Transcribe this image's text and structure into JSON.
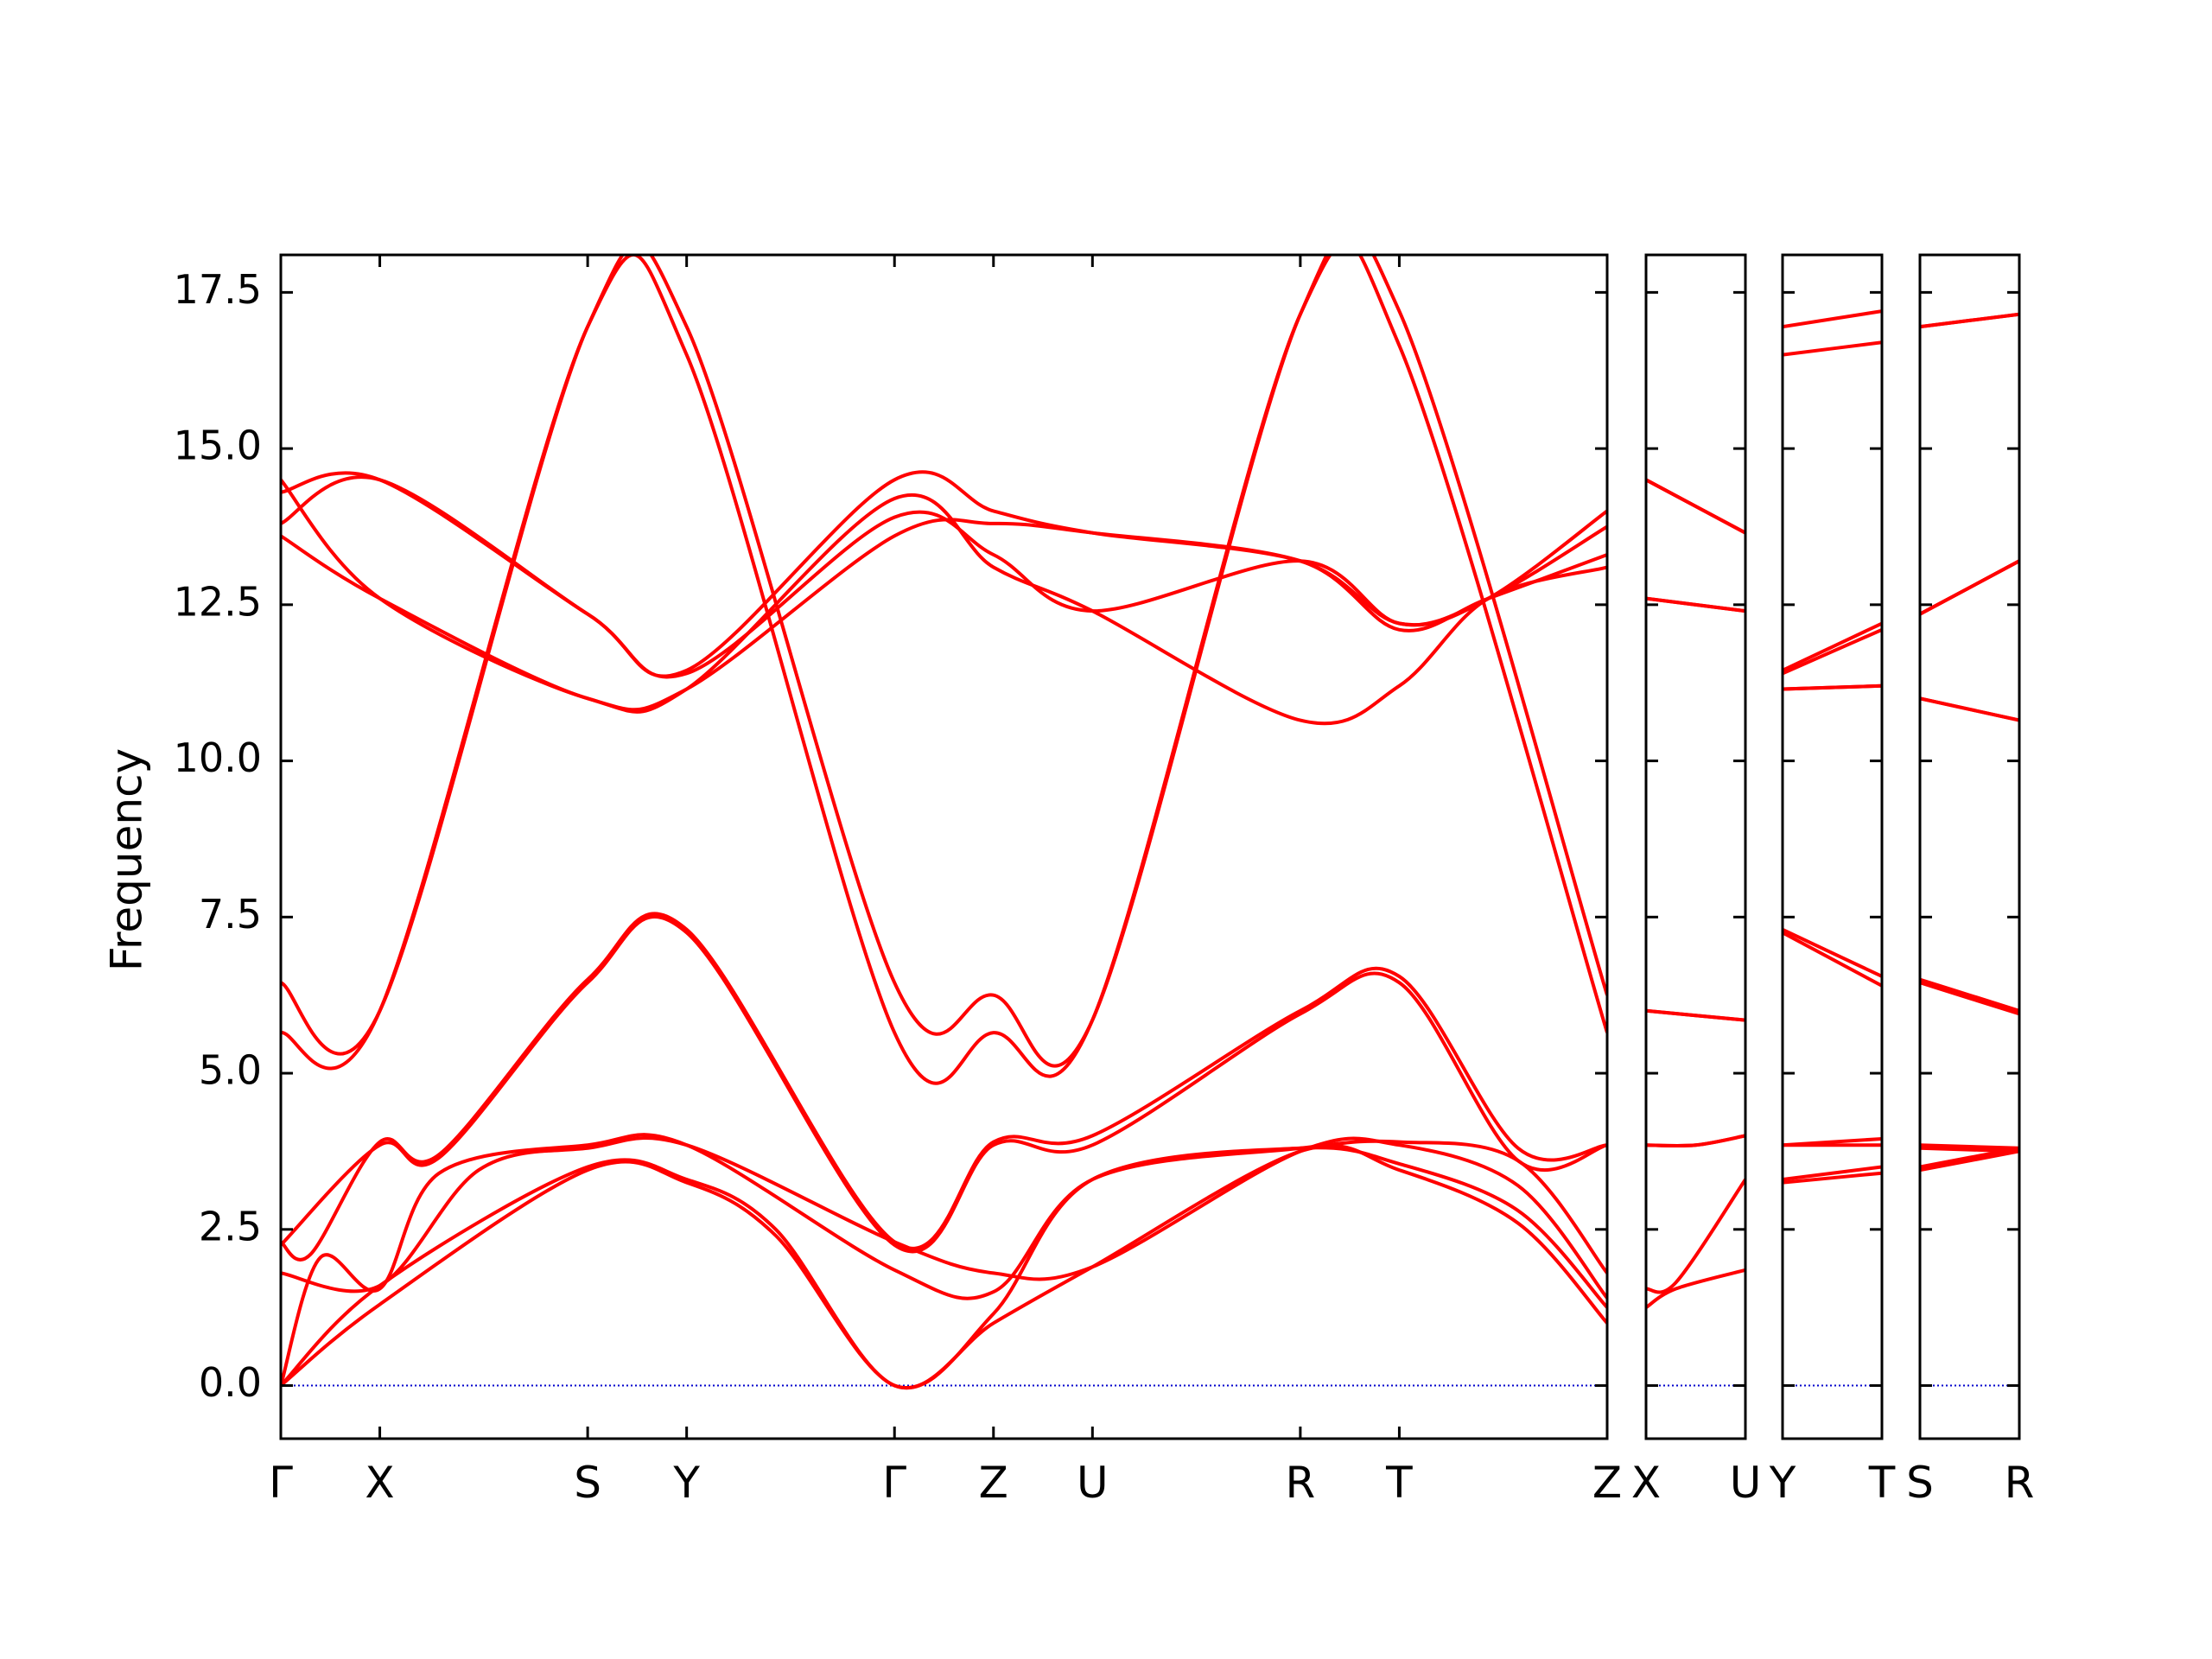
{
  "chart_data": {
    "type": "line",
    "title": "",
    "ylabel": "Frequency",
    "ylim": [
      -0.85,
      18.1
    ],
    "yticks": [
      "0.0",
      "2.5",
      "5.0",
      "7.5",
      "10.0",
      "12.5",
      "15.0",
      "17.5"
    ],
    "ytick_values": [
      0,
      2.5,
      5,
      7.5,
      10,
      12.5,
      15,
      17.5
    ],
    "grid": false,
    "legend": "none",
    "colors": {
      "band": "#ff0000",
      "zero_line": "#0000cc",
      "frame": "#000000"
    },
    "panels": [
      {
        "ticks": [
          {
            "label": "Γ",
            "x": 0
          },
          {
            "label": "X",
            "x": 1
          },
          {
            "label": "S",
            "x": 3.1
          },
          {
            "label": "Y",
            "x": 4.1
          },
          {
            "label": "Γ",
            "x": 6.2
          },
          {
            "label": "Z",
            "x": 7.2
          },
          {
            "label": "U",
            "x": 8.2
          },
          {
            "label": "R",
            "x": 10.3
          },
          {
            "label": "T",
            "x": 11.3
          },
          {
            "label": "Z",
            "x": 13.4
          }
        ],
        "bands": [
          [
            0,
            0,
            1,
            1.3,
            3.1,
            3.45,
            4.1,
            3.25,
            5,
            2.4,
            6.2,
            0,
            7.2,
            1.0,
            8.2,
            1.9,
            10.3,
            3.75,
            11.3,
            3.45,
            12.5,
            2.6,
            13.4,
            1.0
          ],
          [
            0,
            0,
            1,
            1.6,
            3.1,
            3.5,
            4.1,
            3.3,
            5,
            2.5,
            6.2,
            0,
            7.2,
            1.15,
            8.2,
            3.3,
            10.3,
            3.8,
            11.3,
            3.55,
            12.5,
            2.8,
            13.4,
            1.25
          ],
          [
            0,
            0,
            0.4,
            2.05,
            1,
            1.55,
            1.6,
            3.4,
            3.1,
            3.85,
            4.1,
            3.85,
            6.2,
            1.85,
            7.2,
            1.5,
            8.2,
            3.3,
            10.3,
            3.8,
            11.3,
            3.9,
            12.5,
            3.6,
            13.4,
            1.8
          ],
          [
            0,
            1.8,
            1,
            1.6,
            2,
            3.45,
            3.1,
            3.8,
            4.1,
            3.85,
            6.2,
            2.3,
            7.2,
            1.8,
            8.2,
            1.9,
            10.3,
            3.75,
            11.3,
            3.85,
            12.5,
            3.2,
            13.4,
            1.4
          ],
          [
            0,
            2.25,
            1,
            3.85,
            1.6,
            3.65,
            3.1,
            6.45,
            4.1,
            7.25,
            6.2,
            2.25,
            7.2,
            3.85,
            8.2,
            3.85,
            10.3,
            5.95,
            11.3,
            6.45,
            12.5,
            3.6,
            13.4,
            3.85
          ],
          [
            0,
            2.3,
            0.3,
            2.1,
            1,
            3.9,
            1.6,
            3.7,
            3.1,
            6.5,
            4.1,
            7.3,
            6.2,
            2.3,
            7.2,
            3.9,
            8.2,
            4.0,
            10.3,
            6.0,
            11.3,
            6.55,
            12.5,
            3.8,
            13.4,
            3.85
          ],
          [
            0,
            5.65,
            1,
            6.0,
            3.1,
            16.95,
            4.1,
            16.5,
            6.2,
            5.65,
            7.2,
            5.65,
            8.2,
            5.85,
            10.3,
            17.15,
            11.3,
            16.65,
            13.4,
            5.65
          ],
          [
            0,
            6.45,
            1,
            6.0,
            3.1,
            16.95,
            4.1,
            16.95,
            6.2,
            6.45,
            7.2,
            6.25,
            8.2,
            5.85,
            10.3,
            17.15,
            11.3,
            17.2,
            13.4,
            6.25
          ],
          [
            0,
            14.5,
            1,
            12.6,
            3.1,
            11.0,
            4.1,
            11.15,
            6.2,
            14.2,
            7.2,
            13.1,
            8.2,
            12.4,
            10.3,
            10.65,
            11.3,
            11.2,
            12.2,
            12.6,
            13.4,
            13.1
          ],
          [
            0,
            13.6,
            1,
            12.6,
            3.1,
            11.0,
            4.1,
            11.15,
            6.2,
            13.6,
            7.2,
            13.8,
            8.2,
            13.65,
            10.3,
            13.2,
            11.3,
            12.1,
            12.2,
            12.6,
            13.4,
            13.3
          ],
          [
            0,
            13.8,
            1,
            14.5,
            3.1,
            12.35,
            4.1,
            11.4,
            6.2,
            13.9,
            7.2,
            13.3,
            8.2,
            12.4,
            10.3,
            13.2,
            11.3,
            12.2,
            12.2,
            12.6,
            13.4,
            13.75
          ],
          [
            0,
            14.3,
            1,
            14.5,
            3.1,
            12.35,
            4.1,
            11.45,
            6.2,
            14.5,
            7.2,
            14.0,
            8.2,
            13.65,
            10.3,
            13.2,
            11.3,
            12.2,
            12.2,
            12.6,
            13.4,
            14.0
          ]
        ]
      },
      {
        "ticks": [
          {
            "label": "X",
            "x": 0
          },
          {
            "label": "U",
            "x": 1
          }
        ],
        "bands": [
          [
            0,
            1.25,
            0.3,
            1.55,
            1,
            1.85
          ],
          [
            0,
            1.55,
            0.3,
            1.65,
            1,
            3.3
          ],
          [
            0,
            3.85,
            0.5,
            3.85,
            1,
            4.0
          ],
          [
            0,
            3.85,
            0.5,
            3.85,
            1,
            4.0
          ],
          [
            0,
            6.0,
            1,
            5.85
          ],
          [
            0,
            6.0,
            1,
            5.85
          ],
          [
            0,
            12.6,
            1,
            12.4
          ],
          [
            0,
            12.6,
            1,
            12.4
          ],
          [
            0,
            14.5,
            1,
            13.65
          ],
          [
            0,
            14.5,
            1,
            13.65
          ]
        ]
      },
      {
        "ticks": [
          {
            "label": "Y",
            "x": 0
          },
          {
            "label": "T",
            "x": 1
          }
        ],
        "bands": [
          [
            0,
            3.25,
            1,
            3.4
          ],
          [
            0,
            3.3,
            1,
            3.5
          ],
          [
            0,
            3.85,
            1,
            3.85
          ],
          [
            0,
            3.85,
            1,
            3.95
          ],
          [
            0,
            7.25,
            1,
            6.4
          ],
          [
            0,
            7.3,
            1,
            6.55
          ],
          [
            0,
            11.15,
            1,
            11.2
          ],
          [
            0,
            11.15,
            1,
            11.2
          ],
          [
            0,
            11.4,
            1,
            12.1
          ],
          [
            0,
            11.45,
            1,
            12.2
          ],
          [
            0,
            16.5,
            1,
            16.7
          ],
          [
            0,
            16.95,
            1,
            17.2
          ]
        ]
      },
      {
        "ticks": [
          {
            "label": "S",
            "x": 0
          },
          {
            "label": "R",
            "x": 1
          }
        ],
        "bands": [
          [
            0,
            3.45,
            1,
            3.75
          ],
          [
            0,
            3.5,
            1,
            3.8
          ],
          [
            0,
            3.8,
            1,
            3.75
          ],
          [
            0,
            3.85,
            1,
            3.8
          ],
          [
            0,
            6.45,
            1,
            5.95
          ],
          [
            0,
            6.5,
            1,
            6.0
          ],
          [
            0,
            11.0,
            1,
            10.65
          ],
          [
            0,
            11.0,
            1,
            10.65
          ],
          [
            0,
            12.35,
            1,
            13.2
          ],
          [
            0,
            12.35,
            1,
            13.2
          ],
          [
            0,
            16.95,
            1,
            17.15
          ],
          [
            0,
            16.95,
            1,
            17.15
          ]
        ]
      }
    ]
  }
}
